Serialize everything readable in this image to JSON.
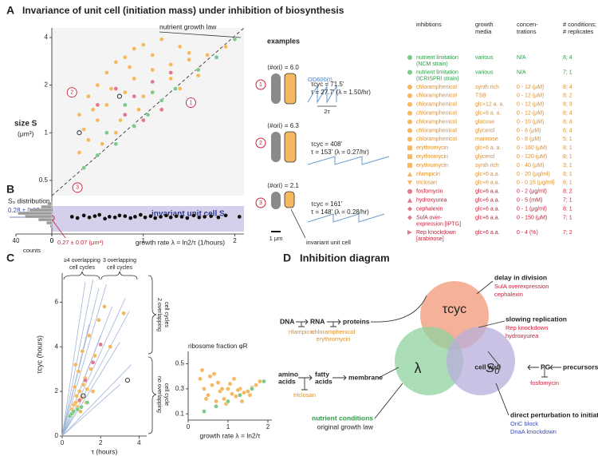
{
  "panel_A": {
    "label": "A",
    "title": "Invariance of unit cell (initiation mass) under inhibition of biosynthesis",
    "law_label": "nutrient growth law",
    "ylabel": [
      "size S",
      "(μm³)"
    ]
  },
  "panel_B": {
    "label": "B",
    "dist_title": "S₀ distribution",
    "dist_value": "0.28 ± 0.05 μm³",
    "band_label": "invariant unit cell S₀",
    "origin_value": "0.27 ± 0.07 (μm³)",
    "counts_label": "counts"
  },
  "examples": {
    "title": "examples",
    "od_label": "OD600(t)",
    "two_tau": "2τ",
    "scale": "1 μm",
    "unit_cell": "invariant unit cell",
    "rows": [
      {
        "num": "1",
        "ori": "⟨#ori⟩ = 6.0",
        "tcyc": "τcyc = 71.5'",
        "tau": "τ = 27.7' (λ = 1.50/hr)"
      },
      {
        "num": "2",
        "ori": "⟨#ori⟩ = 6.3",
        "tcyc": "τcyc = 408'",
        "tau": "τ = 153' (λ = 0.27/hr)"
      },
      {
        "num": "3",
        "ori": "⟨#ori⟩ = 2.1",
        "tcyc": "τcyc = 161'",
        "tau": "τ = 148' (λ = 0.28/hr)"
      }
    ]
  },
  "legend_table": {
    "headers": [
      [
        "inhibtions"
      ],
      [
        "growth",
        "media"
      ],
      [
        "concen-",
        "trations"
      ],
      [
        "# conditions;",
        "# replicates"
      ]
    ],
    "rows": [
      {
        "marker": "circle",
        "color": "#7dc98a",
        "text_color": "#2e9a48",
        "cells": [
          [
            "nutrient limitation",
            "(NCM strain)"
          ],
          "various",
          "N/A",
          "8; 4"
        ]
      },
      {
        "marker": "circle",
        "color": "#7dc98a",
        "text_color": "#2e9a48",
        "cells": [
          [
            "nutrient limitation",
            "(ICRISPRi strain)"
          ],
          "various",
          "N/A",
          "7; 1"
        ]
      },
      {
        "marker": "circle",
        "color": "#f5b860",
        "text_color": "#e0902a",
        "cells": [
          "chloramphenicol",
          "synth rich",
          "0 - 12 (μM)",
          "8; 4"
        ]
      },
      {
        "marker": "circle",
        "color": "#f5b860",
        "text_color": "#e0902a",
        "cells": [
          "chloramphenicol",
          "TSB",
          "0 - 12 (μM)",
          "8; 2"
        ]
      },
      {
        "marker": "circle",
        "color": "#f5b860",
        "text_color": "#e0902a",
        "cells": [
          "chloramphenicol",
          "glc+12 a. a.",
          "0 - 12 (μM)",
          "8; 3"
        ]
      },
      {
        "marker": "circle",
        "color": "#f5b860",
        "text_color": "#e0902a",
        "cells": [
          "chloramphenicol",
          "glc+6 a. a.",
          "0 - 12 (μM)",
          "8; 4"
        ]
      },
      {
        "marker": "circle",
        "color": "#f5b860",
        "text_color": "#e0902a",
        "cells": [
          "chloramphenicol",
          "glucose",
          "0 - 10 (μM)",
          "8; 4"
        ]
      },
      {
        "marker": "circle",
        "color": "#f5b860",
        "text_color": "#e0902a",
        "cells": [
          "chloramphenicol",
          "glycerol",
          "0 - 6 (μM)",
          "6; 4"
        ]
      },
      {
        "marker": "circle",
        "color": "#f5b860",
        "text_color": "#e0902a",
        "cells": [
          "chloramphenicol",
          "mannose",
          "0 - 8 (μM)",
          "5; 1"
        ]
      },
      {
        "marker": "square",
        "color": "#f5b860",
        "text_color": "#e0902a",
        "cells": [
          "erythromycin",
          "glc+6 a. a.",
          "0 - 160 (μM)",
          "8; 1"
        ]
      },
      {
        "marker": "square",
        "color": "#f5b860",
        "text_color": "#e0902a",
        "cells": [
          "erythromycin",
          "glycerol",
          "0 - 120 (μM)",
          "8; 1"
        ]
      },
      {
        "marker": "square",
        "color": "#f5b860",
        "text_color": "#e0902a",
        "cells": [
          "erythromycin",
          "synth rich",
          "0 - 40 (μM)",
          "3; 1"
        ]
      },
      {
        "marker": "triangle-up",
        "color": "#f5b860",
        "text_color": "#e0902a",
        "cells": [
          "rifampicin",
          "glc+6 a.a.",
          "0 - 20 (μg/ml)",
          "8; 1"
        ]
      },
      {
        "marker": "triangle-down",
        "color": "#f5b860",
        "text_color": "#e0902a",
        "cells": [
          "triclosan",
          "glc+6 a.a.",
          "0 - 0.15 (μg/ml)",
          "8; 1"
        ]
      },
      {
        "marker": "circle",
        "color": "#e07a8a",
        "text_color": "#c8203a",
        "cells": [
          "fosfomycin",
          "glc+6 a.a.",
          "0 - 2 (μg/ml)",
          "8; 2"
        ]
      },
      {
        "marker": "triangle-up",
        "color": "#e07a8a",
        "text_color": "#c8203a",
        "cells": [
          "hydroxyurea",
          "glc+6 a.a.",
          "0 - 5 (mM)",
          "7; 1"
        ]
      },
      {
        "marker": "diamond",
        "color": "#e07a8a",
        "text_color": "#c8203a",
        "cells": [
          "cephalexin",
          "glc+6 a.a.",
          "0 - 1 (μg/ml)",
          "8; 1"
        ]
      },
      {
        "marker": "diamond",
        "color": "#e07a8a",
        "text_color": "#c8203a",
        "cells": [
          [
            "SulA over-",
            "expression [IPTG]"
          ],
          "glc+6 a.a.",
          "0 - 150 (μM)",
          "7; 1"
        ]
      },
      {
        "marker": "triangle-right",
        "color": "#e07a8a",
        "text_color": "#c8203a",
        "cells": [
          [
            "Rep knockdown",
            "[arabinose]"
          ],
          "glc+6 a.a.",
          "0 - 4 (%)",
          "7; 2"
        ]
      }
    ]
  },
  "panel_C": {
    "label": "C",
    "brace_top": [
      [
        "≥4 overlapping",
        "cell cycles"
      ],
      [
        "3 overlapping",
        "cell cycles"
      ]
    ],
    "brace_side": [
      [
        "2 overlapping",
        "cell cycles"
      ],
      [
        "no overlapping",
        "cell cycle"
      ]
    ]
  },
  "panel_D": {
    "label": "D",
    "title": "Inhibition diagram",
    "venn": [
      "τcyc",
      "λ",
      "S₀"
    ],
    "dna": "DNA",
    "rna": "RNA",
    "proteins": "proteins",
    "rifampicin": "rifampicin",
    "ribo_drugs": [
      "chloramphenicol",
      "erythromycin"
    ],
    "amino": [
      "amino",
      "acids"
    ],
    "fatty": [
      "fatty",
      "acids"
    ],
    "membrane": "membrane",
    "triclosan": "triclosan",
    "nutrient": "nutrient conditions",
    "original": "original growth law",
    "division": "delay in division",
    "division_drugs": [
      "SulA overexpression",
      "cephalexin"
    ],
    "replication": "slowing replication",
    "replication_drugs": [
      "Rep knockdown",
      "hydroxyurea"
    ],
    "cell_wall": "cell wall",
    "pg": "PG",
    "precursors": "precursors",
    "fosfomycin": "fosfomycin",
    "initiation": "direct perturbation to initiation",
    "initiation_ways": [
      "OriC block",
      "DnaA knockdown"
    ]
  },
  "chart_data": [
    {
      "type": "scatter",
      "log_y": true,
      "ylim": [
        0.4,
        4.6
      ],
      "xlim": [
        0,
        2.1
      ],
      "yticks": [
        0.5,
        1,
        2,
        4
      ],
      "guide_color": "#222",
      "guide_dash": true,
      "guides": [
        {
          "x": [
            0,
            2.1
          ],
          "y": [
            0.4,
            4.6
          ]
        }
      ],
      "series": [
        {
          "color": "#f5b860",
          "marker": "circle",
          "x": [
            0.3,
            0.4,
            0.5,
            0.6,
            0.7,
            0.8,
            0.9,
            1.0,
            1.2,
            1.4,
            1.5,
            0.5,
            0.6,
            0.8,
            0.9,
            1.1,
            1.3,
            1.5,
            1.7,
            0.4,
            0.55,
            0.75,
            0.95,
            1.2,
            1.4,
            0.3,
            0.65,
            1.0,
            1.6,
            0.45,
            1.1,
            0.85,
            0.35,
            1.3,
            0.7,
            1.9
          ],
          "y": [
            1.3,
            1.7,
            2.0,
            2.4,
            2.8,
            3.0,
            3.4,
            3.6,
            3.9,
            3.5,
            3.2,
            1.2,
            1.5,
            1.8,
            2.2,
            2.5,
            2.7,
            2.9,
            3.1,
            0.9,
            0.85,
            1.2,
            1.4,
            1.6,
            1.9,
            0.75,
            1.9,
            1.7,
            2.3,
            1.4,
            3.1,
            2.6,
            1.05,
            2.2,
            1.0,
            3.5
          ]
        },
        {
          "color": "#7dc98a",
          "marker": "circle",
          "x": [
            0.35,
            0.5,
            0.7,
            0.9,
            1.05,
            1.2,
            1.35,
            1.6,
            1.8,
            2.0,
            0.6,
            0.8,
            1.1
          ],
          "y": [
            0.6,
            0.72,
            0.85,
            1.1,
            1.3,
            1.6,
            1.9,
            2.5,
            3.0,
            3.9,
            1.0,
            1.5,
            1.8
          ]
        },
        {
          "color": "#e07a8a",
          "marker": "circle",
          "x": [
            0.5,
            0.7,
            0.9,
            1.1,
            1.3,
            0.8,
            1.0,
            1.2
          ],
          "y": [
            1.5,
            1.9,
            1.7,
            2.1,
            2.4,
            1.3,
            1.2,
            1.4
          ]
        },
        {
          "color": "none",
          "stroke": "#222",
          "marker": "circle",
          "x": [
            0.74,
            0.3
          ],
          "y": [
            1.7,
            1.0
          ]
        }
      ],
      "highlights": {
        "x": [
          1.52,
          0.22,
          0.28
        ],
        "y": [
          1.55,
          1.8,
          0.45
        ]
      }
    },
    {
      "type": "scatter",
      "xlim": [
        0,
        2.1
      ],
      "ylim": [
        0,
        0.6
      ],
      "xticks": [
        0,
        1,
        2
      ],
      "xlabel": "growth rate λ = ln2/τ (1/hours)",
      "series": [
        {
          "color": "#111",
          "marker": "circle",
          "x": [
            0.22,
            0.28,
            0.35,
            0.41,
            0.47,
            0.52,
            0.58,
            0.63,
            0.69,
            0.74,
            0.8,
            0.86,
            0.91,
            0.97,
            1.02,
            1.08,
            1.13,
            1.19,
            1.25,
            1.3,
            1.36,
            1.42,
            1.48,
            1.55,
            1.61,
            1.67,
            1.74,
            1.82,
            1.9,
            2.05
          ],
          "y": [
            0.27,
            0.25,
            0.29,
            0.26,
            0.28,
            0.3,
            0.24,
            0.27,
            0.26,
            0.29,
            0.28,
            0.25,
            0.27,
            0.3,
            0.26,
            0.28,
            0.25,
            0.27,
            0.29,
            0.26,
            0.28,
            0.27,
            0.25,
            0.29,
            0.26,
            0.27,
            0.28,
            0.26,
            0.29,
            0.27
          ]
        }
      ]
    },
    {
      "type": "histogram",
      "orientation": "horizontal",
      "xlim": [
        40,
        0
      ],
      "ylim": [
        0,
        0.6
      ],
      "xticks": [
        40,
        0
      ],
      "color": "#9a9a9a",
      "bins": [
        0.1,
        0.15,
        0.2,
        0.25,
        0.3,
        0.35,
        0.4,
        0.45,
        0.5
      ],
      "counts": [
        2,
        6,
        15,
        30,
        38,
        25,
        12,
        5
      ]
    },
    {
      "type": "scatter",
      "xlim": [
        0,
        4.4
      ],
      "ylim": [
        0,
        7.3
      ],
      "xticks": [
        0,
        2,
        4
      ],
      "yticks": [
        0,
        2,
        4,
        6
      ],
      "xlabel": "τ (hours)",
      "ylabel": "τcyc (hours)",
      "guide_color": "#9db4d6",
      "guide_dash": false,
      "guides": [
        {
          "x": [
            0,
            1.2
          ],
          "y": [
            0,
            6.9
          ]
        },
        {
          "x": [
            0,
            1.6
          ],
          "y": [
            0,
            7.0
          ]
        },
        {
          "x": [
            0,
            1.9
          ],
          "y": [
            0,
            6.6
          ]
        },
        {
          "x": [
            0,
            2.3
          ],
          "y": [
            0,
            6.8
          ]
        },
        {
          "x": [
            0,
            2.6
          ],
          "y": [
            0,
            5.8
          ]
        },
        {
          "x": [
            0,
            3.3
          ],
          "y": [
            0,
            6.2
          ]
        },
        {
          "x": [
            0,
            3.5
          ],
          "y": [
            0,
            5.6
          ]
        },
        {
          "x": [
            0,
            1.4
          ],
          "y": [
            0,
            5.0
          ]
        },
        {
          "x": [
            0,
            2.0
          ],
          "y": [
            0,
            4.5
          ]
        },
        {
          "x": [
            0,
            3.0
          ],
          "y": [
            0,
            4.2
          ]
        },
        {
          "x": [
            0,
            3.6
          ],
          "y": [
            0,
            3.2
          ]
        },
        {
          "x": [
            0,
            3.0
          ],
          "y": [
            0,
            2.3
          ]
        }
      ],
      "series": [
        {
          "color": "#f5b860",
          "marker": "circle",
          "x": [
            0.5,
            0.6,
            0.7,
            0.75,
            0.8,
            0.9,
            1.0,
            1.1,
            1.2,
            1.3,
            1.5,
            1.7,
            0.65,
            0.85,
            1.05,
            1.4,
            1.9,
            2.2,
            0.55,
            0.95,
            1.25,
            1.6,
            2.5,
            3.2,
            0.7
          ],
          "y": [
            1.2,
            1.4,
            1.5,
            1.8,
            1.3,
            2.0,
            1.7,
            2.3,
            2.6,
            2.1,
            3.0,
            3.6,
            2.2,
            2.9,
            3.8,
            4.5,
            5.2,
            5.8,
            1.0,
            1.1,
            1.5,
            2.0,
            4.0,
            5.5,
            3.2
          ]
        },
        {
          "color": "#7dc98a",
          "marker": "circle",
          "x": [
            0.4,
            0.5,
            0.6,
            0.8,
            1.0,
            1.3
          ],
          "y": [
            0.9,
            1.0,
            1.1,
            1.2,
            1.3,
            1.5
          ]
        },
        {
          "color": "#e07a8a",
          "marker": "circle",
          "x": [
            0.9,
            1.2,
            1.6,
            2.0
          ],
          "y": [
            1.6,
            2.5,
            3.3,
            4.1
          ]
        },
        {
          "color": "none",
          "stroke": "#222",
          "marker": "circle",
          "x": [
            1.1,
            3.4
          ],
          "y": [
            1.8,
            2.5
          ]
        }
      ]
    },
    {
      "type": "scatter",
      "title": "ribosome fraction φR",
      "xlim": [
        0,
        2.1
      ],
      "ylim": [
        0.05,
        0.6
      ],
      "xticks": [
        0,
        1,
        2
      ],
      "yticks": [
        0.1,
        0.3,
        0.5
      ],
      "xlabel": "growth rate λ = ln2/τ",
      "series": [
        {
          "color": "#f5b860",
          "marker": "circle",
          "x": [
            0.3,
            0.4,
            0.5,
            0.6,
            0.7,
            0.8,
            0.9,
            1.0,
            1.1,
            1.2,
            1.3,
            1.4,
            1.5,
            1.6,
            1.7,
            1.8,
            0.35,
            0.55,
            0.75,
            0.95,
            1.15,
            1.35,
            1.55,
            0.45,
            0.65,
            0.85,
            1.05,
            1.25
          ],
          "y": [
            0.38,
            0.3,
            0.25,
            0.33,
            0.2,
            0.28,
            0.22,
            0.3,
            0.26,
            0.24,
            0.3,
            0.27,
            0.28,
            0.31,
            0.33,
            0.36,
            0.45,
            0.4,
            0.35,
            0.18,
            0.38,
            0.2,
            0.25,
            0.22,
            0.42,
            0.3,
            0.34,
            0.29
          ]
        },
        {
          "color": "#7dc98a",
          "marker": "circle",
          "x": [
            0.4,
            0.7,
            1.0,
            1.3,
            1.6,
            1.9
          ],
          "y": [
            0.12,
            0.16,
            0.2,
            0.25,
            0.3,
            0.36
          ]
        }
      ]
    }
  ]
}
